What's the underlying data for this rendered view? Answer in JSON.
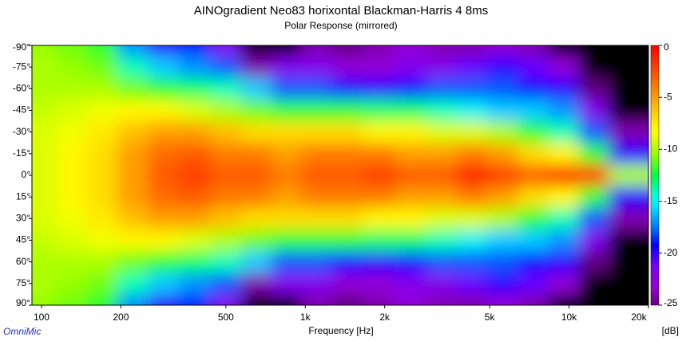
{
  "chart_data": {
    "type": "heatmap",
    "title": "AINOgradient Neo83 horixontal Blackman-Harris 4 8ms",
    "subtitle": "Polar Response (mirrored)",
    "x_label": "Frequency [Hz]",
    "colorbar_label": "[dB]",
    "watermark": "OmniMic",
    "log_x": true,
    "x": [
      100,
      130,
      170,
      220,
      290,
      380,
      500,
      650,
      850,
      1100,
      1450,
      1900,
      2500,
      3300,
      4300,
      5600,
      7300,
      9500,
      12500,
      16000
    ],
    "y": [
      -90,
      -75,
      -60,
      -45,
      -30,
      -15,
      0,
      15,
      30,
      45,
      60,
      75,
      90
    ],
    "z": [
      [
        -10.5,
        -11,
        -12,
        -17,
        -20,
        -19,
        -22,
        -26,
        -26,
        -24,
        -25,
        -24,
        -23,
        -24,
        -24,
        -23,
        -24,
        -26,
        -28,
        -28
      ],
      [
        -10,
        -10.5,
        -11,
        -14,
        -16,
        -17,
        -18,
        -24,
        -22,
        -22,
        -23,
        -23,
        -22,
        -22,
        -21,
        -20,
        -21,
        -23,
        -27,
        -28
      ],
      [
        -10,
        -10,
        -10,
        -11,
        -12,
        -13,
        -14,
        -16,
        -18,
        -18,
        -19,
        -20,
        -19,
        -18,
        -18,
        -18,
        -19,
        -20,
        -25,
        -28
      ],
      [
        -9.5,
        -9,
        -8.5,
        -8,
        -8,
        -9,
        -10,
        -11,
        -12,
        -12,
        -12,
        -13,
        -13,
        -14,
        -15,
        -16,
        -16,
        -17,
        -22,
        -27
      ],
      [
        -9,
        -8.5,
        -7.5,
        -6,
        -5,
        -5,
        -6,
        -7,
        -7,
        -7,
        -7,
        -8,
        -8,
        -9,
        -9,
        -10,
        -12,
        -14,
        -18,
        -24
      ],
      [
        -9,
        -8,
        -7,
        -5,
        -3.5,
        -3,
        -4,
        -4,
        -5,
        -4,
        -4,
        -4,
        -5,
        -5,
        -4,
        -5,
        -7,
        -8,
        -12,
        -20
      ],
      [
        -9,
        -8,
        -7,
        -5,
        -3,
        -2,
        -3,
        -3,
        -4,
        -3,
        -3,
        -2,
        -3,
        -3,
        -1,
        -2,
        -3,
        -1,
        -2,
        -10
      ],
      [
        -9,
        -8,
        -7,
        -5,
        -3.5,
        -3,
        -4,
        -4,
        -5,
        -4,
        -4,
        -4,
        -5,
        -5,
        -4,
        -5,
        -7,
        -8,
        -12,
        -20
      ],
      [
        -9,
        -8.5,
        -7.5,
        -6,
        -5,
        -5,
        -6,
        -7,
        -7,
        -7,
        -7,
        -8,
        -8,
        -9,
        -9,
        -10,
        -12,
        -14,
        -18,
        -24
      ],
      [
        -9.5,
        -9,
        -8.5,
        -8,
        -8,
        -9,
        -10,
        -11,
        -12,
        -12,
        -12,
        -13,
        -13,
        -14,
        -15,
        -16,
        -16,
        -17,
        -22,
        -27
      ],
      [
        -10,
        -10,
        -10,
        -11,
        -12,
        -13,
        -14,
        -16,
        -18,
        -18,
        -19,
        -20,
        -19,
        -18,
        -18,
        -18,
        -19,
        -20,
        -25,
        -28
      ],
      [
        -10,
        -10.5,
        -11,
        -14,
        -16,
        -17,
        -18,
        -24,
        -22,
        -22,
        -23,
        -23,
        -22,
        -22,
        -21,
        -20,
        -21,
        -23,
        -27,
        -28
      ],
      [
        -10.5,
        -11,
        -12,
        -17,
        -20,
        -19,
        -22,
        -26,
        -26,
        -24,
        -25,
        -24,
        -23,
        -24,
        -24,
        -23,
        -24,
        -26,
        -28,
        -28
      ]
    ],
    "xlim": [
      92,
      20000
    ],
    "xticks": [
      100,
      200,
      500,
      {
        "value": 1000,
        "label": "1k"
      },
      {
        "value": 2000,
        "label": "2k"
      },
      {
        "value": 5000,
        "label": "5k"
      },
      {
        "value": 10000,
        "label": "10k"
      },
      {
        "value": 20000,
        "label": "20k"
      }
    ],
    "ylim": [
      -90,
      90
    ],
    "yticks": [
      {
        "value": -90,
        "label": "-90°"
      },
      {
        "value": -75,
        "label": "-75°"
      },
      {
        "value": -60,
        "label": "-60°"
      },
      {
        "value": -45,
        "label": "-45°"
      },
      {
        "value": -30,
        "label": "-30°"
      },
      {
        "value": -15,
        "label": "-15°"
      },
      {
        "value": 0,
        "label": "0°"
      },
      {
        "value": 15,
        "label": "15°"
      },
      {
        "value": 30,
        "label": "30°"
      },
      {
        "value": 45,
        "label": "45°"
      },
      {
        "value": 60,
        "label": "60°"
      },
      {
        "value": 75,
        "label": "75°"
      },
      {
        "value": 90,
        "label": "90°"
      }
    ],
    "zlim": [
      -25,
      0
    ],
    "zticks": [
      0,
      -5,
      -10,
      -15,
      -20,
      -25
    ]
  }
}
